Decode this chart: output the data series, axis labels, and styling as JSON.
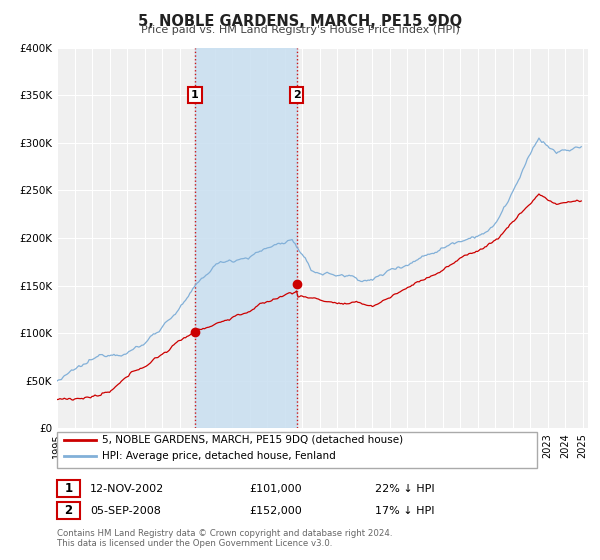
{
  "title": "5, NOBLE GARDENS, MARCH, PE15 9DQ",
  "subtitle": "Price paid vs. HM Land Registry's House Price Index (HPI)",
  "ylim": [
    0,
    400000
  ],
  "xlim_start": 1995.0,
  "xlim_end": 2025.3,
  "yticks": [
    0,
    50000,
    100000,
    150000,
    200000,
    250000,
    300000,
    350000,
    400000
  ],
  "ytick_labels": [
    "£0",
    "£50K",
    "£100K",
    "£150K",
    "£200K",
    "£250K",
    "£300K",
    "£350K",
    "£400K"
  ],
  "xticks": [
    1995,
    1996,
    1997,
    1998,
    1999,
    2000,
    2001,
    2002,
    2003,
    2004,
    2005,
    2006,
    2007,
    2008,
    2009,
    2010,
    2011,
    2012,
    2013,
    2014,
    2015,
    2016,
    2017,
    2018,
    2019,
    2020,
    2021,
    2022,
    2023,
    2024,
    2025
  ],
  "sale1_x": 2002.87,
  "sale1_y": 101000,
  "sale1_label": "1",
  "sale1_date": "12-NOV-2002",
  "sale1_price": "£101,000",
  "sale1_hpi": "22% ↓ HPI",
  "sale2_x": 2008.68,
  "sale2_y": 152000,
  "sale2_label": "2",
  "sale2_date": "05-SEP-2008",
  "sale2_price": "£152,000",
  "sale2_hpi": "17% ↓ HPI",
  "hpi_color": "#82b0d8",
  "price_color": "#cc0000",
  "bg_color": "#ffffff",
  "plot_bg_color": "#f0f0f0",
  "shade_color": "#c8dff0",
  "grid_color": "#ffffff",
  "legend_label1": "5, NOBLE GARDENS, MARCH, PE15 9DQ (detached house)",
  "legend_label2": "HPI: Average price, detached house, Fenland",
  "footer1": "Contains HM Land Registry data © Crown copyright and database right 2024.",
  "footer2": "This data is licensed under the Open Government Licence v3.0."
}
